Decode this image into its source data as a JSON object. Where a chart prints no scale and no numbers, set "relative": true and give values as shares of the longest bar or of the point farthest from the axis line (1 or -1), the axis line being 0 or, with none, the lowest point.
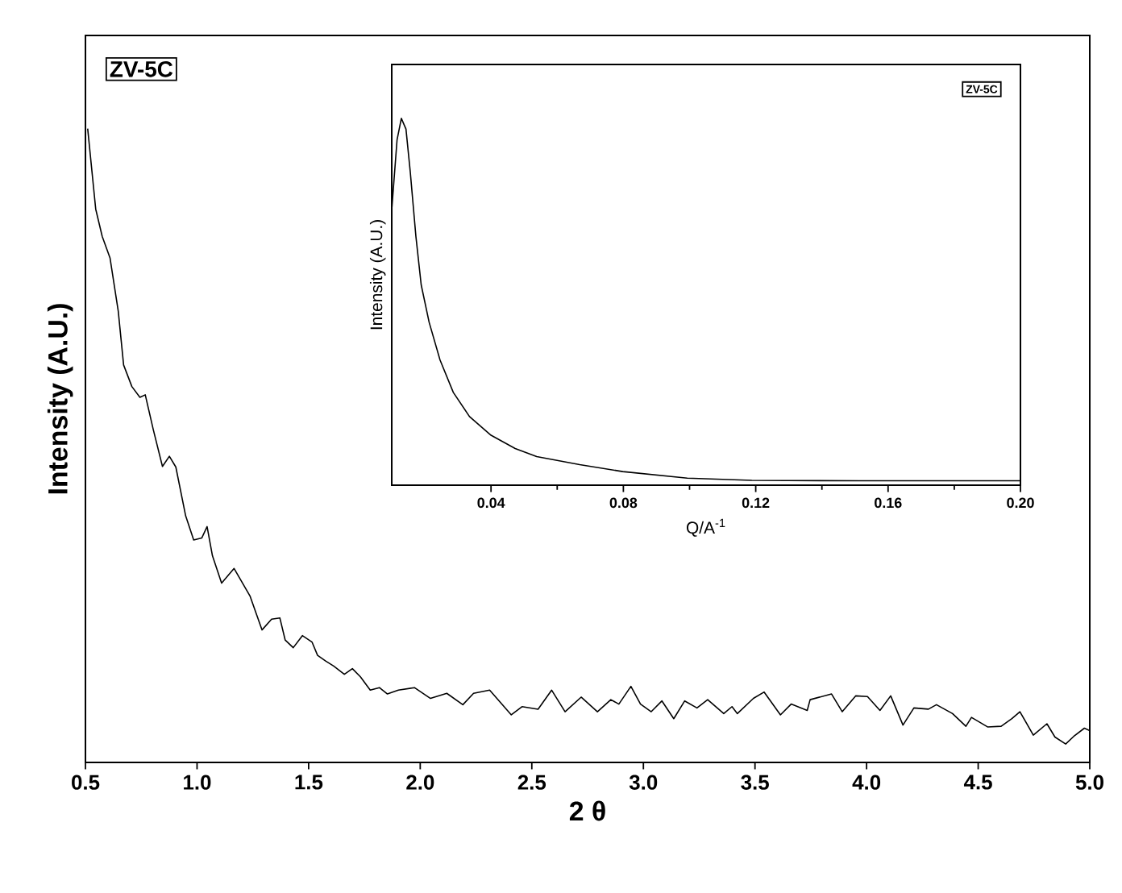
{
  "chart_data": [
    {
      "type": "line",
      "relative": true,
      "xlabel": "2 θ",
      "ylabel": "Intensity (A.U.)",
      "annotations": [
        "ZV-5C"
      ],
      "xlim": [
        0.5,
        5.0
      ],
      "xticks": [
        {
          "value": 0.5,
          "label": "0.5"
        },
        {
          "value": 1.0,
          "label": "1.0"
        },
        {
          "value": 1.5,
          "label": "1.5"
        },
        {
          "value": 2.0,
          "label": "2.0"
        },
        {
          "value": 2.5,
          "label": "2.5"
        },
        {
          "value": 3.0,
          "label": "3.0"
        },
        {
          "value": 3.5,
          "label": "3.5"
        },
        {
          "value": 4.0,
          "label": "4.0"
        },
        {
          "value": 4.5,
          "label": "4.5"
        },
        {
          "value": 5.0,
          "label": "5.0"
        }
      ],
      "x": [
        0.51,
        0.546,
        0.575,
        0.61,
        0.647,
        0.671,
        0.708,
        0.744,
        0.768,
        0.804,
        0.845,
        0.876,
        0.905,
        0.949,
        0.985,
        1.021,
        1.045,
        1.069,
        1.11,
        1.166,
        1.238,
        1.291,
        1.334,
        1.371,
        1.395,
        1.431,
        1.472,
        1.515,
        1.54,
        1.576,
        1.612,
        1.66,
        1.696,
        1.732,
        1.776,
        1.817,
        1.853,
        1.902,
        1.974,
        2.046,
        2.119,
        2.191,
        2.239,
        2.311,
        2.408,
        2.456,
        2.528,
        2.589,
        2.649,
        2.721,
        2.794,
        2.854,
        2.89,
        2.944,
        2.987,
        3.035,
        3.083,
        3.136,
        3.185,
        3.24,
        3.288,
        3.36,
        3.397,
        3.421,
        3.493,
        3.541,
        3.614,
        3.662,
        3.734,
        3.747,
        3.843,
        3.891,
        3.951,
        4.004,
        4.06,
        4.108,
        4.163,
        4.212,
        4.277,
        4.313,
        4.385,
        4.445,
        4.47,
        4.542,
        4.603,
        4.651,
        4.687,
        4.747,
        4.808,
        4.844,
        4.892,
        4.928,
        4.976,
        5.0
      ],
      "series": [
        {
          "color": "#000000",
          "values": [
            1.0,
            0.873,
            0.83,
            0.796,
            0.712,
            0.627,
            0.593,
            0.576,
            0.58,
            0.525,
            0.467,
            0.483,
            0.466,
            0.389,
            0.351,
            0.354,
            0.372,
            0.326,
            0.283,
            0.306,
            0.262,
            0.209,
            0.226,
            0.228,
            0.193,
            0.181,
            0.2,
            0.19,
            0.169,
            0.16,
            0.152,
            0.139,
            0.148,
            0.135,
            0.114,
            0.118,
            0.108,
            0.114,
            0.118,
            0.101,
            0.109,
            0.091,
            0.109,
            0.114,
            0.075,
            0.088,
            0.084,
            0.114,
            0.08,
            0.103,
            0.08,
            0.099,
            0.092,
            0.12,
            0.092,
            0.08,
            0.097,
            0.069,
            0.097,
            0.086,
            0.099,
            0.077,
            0.088,
            0.077,
            0.101,
            0.111,
            0.075,
            0.092,
            0.082,
            0.099,
            0.108,
            0.08,
            0.105,
            0.104,
            0.082,
            0.105,
            0.059,
            0.086,
            0.084,
            0.091,
            0.077,
            0.057,
            0.071,
            0.056,
            0.057,
            0.069,
            0.08,
            0.043,
            0.061,
            0.04,
            0.029,
            0.041,
            0.054,
            0.05
          ]
        }
      ]
    },
    {
      "type": "line",
      "relative": true,
      "xlabel": "Q/A$^{-1}$",
      "ylabel": "Intensity (A.U.)",
      "annotations": [
        "ZV-5C"
      ],
      "xlim": [
        0.01,
        0.2
      ],
      "xticks": [
        0.04,
        0.08,
        0.12,
        0.16,
        {
          "value": 0.2,
          "label": "0.20"
        }
      ],
      "x": [
        0.01,
        0.0116,
        0.0129,
        0.0143,
        0.0156,
        0.0173,
        0.0189,
        0.0213,
        0.0246,
        0.0286,
        0.0335,
        0.04,
        0.0473,
        0.0538,
        0.0668,
        0.0798,
        0.0993,
        0.1188,
        0.1512,
        0.2
      ],
      "series": [
        {
          "color": "#000000",
          "values": [
            0.751,
            0.941,
            1.0,
            0.971,
            0.854,
            0.678,
            0.546,
            0.444,
            0.341,
            0.253,
            0.187,
            0.136,
            0.1,
            0.078,
            0.056,
            0.037,
            0.019,
            0.013,
            0.012,
            0.012
          ]
        }
      ]
    }
  ]
}
